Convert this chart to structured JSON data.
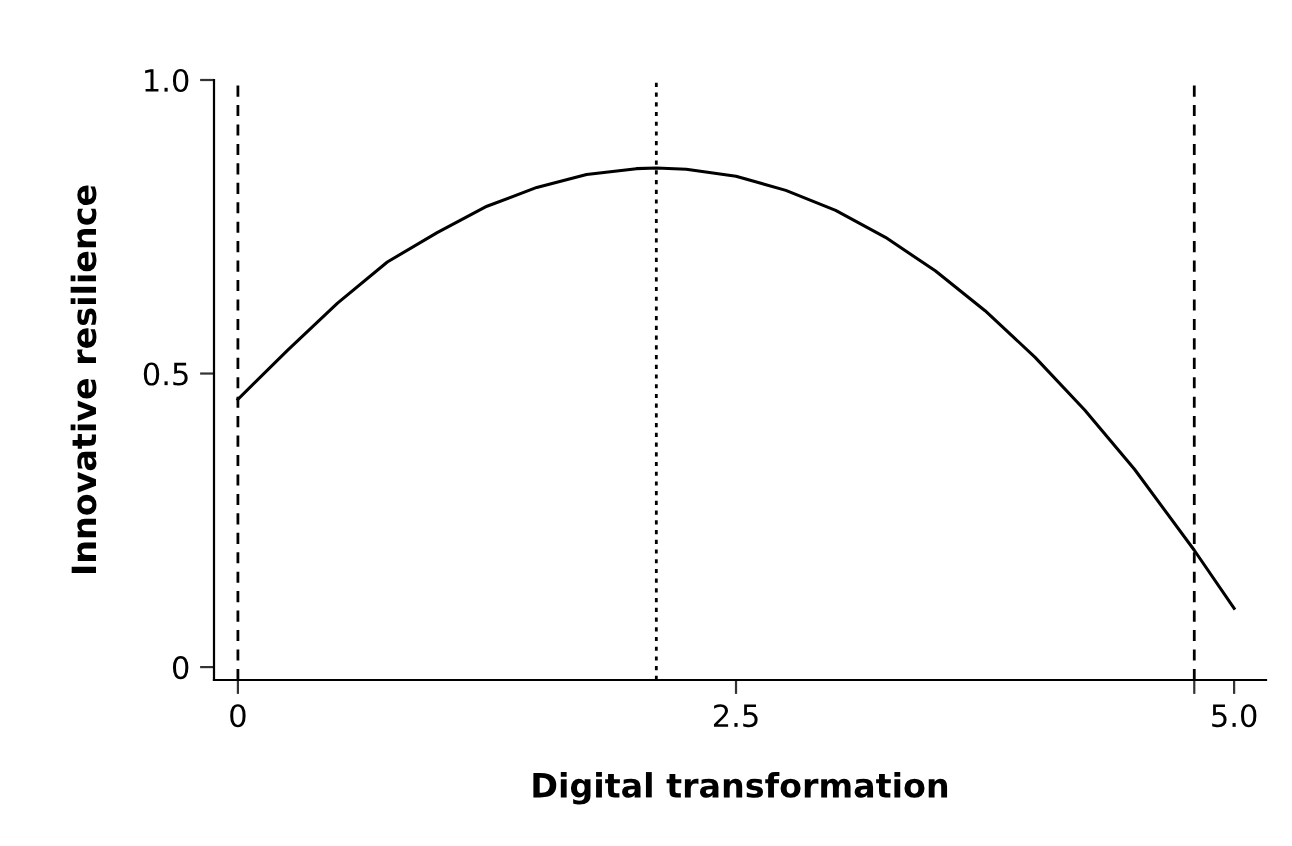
{
  "chart_data": {
    "type": "line",
    "xlabel": "Digital transformation",
    "ylabel": "Innovative resilience",
    "x": [
      0,
      0.25,
      0.5,
      0.75,
      1.0,
      1.25,
      1.5,
      1.75,
      2.0,
      2.1,
      2.25,
      2.5,
      2.75,
      3.0,
      3.25,
      3.5,
      3.75,
      4.0,
      4.25,
      4.5,
      4.8,
      5.0
    ],
    "series": [
      {
        "color": "#000000",
        "values": [
          0.456,
          0.54,
          0.62,
          0.69,
          0.74,
          0.785,
          0.817,
          0.839,
          0.849,
          0.85,
          0.848,
          0.836,
          0.812,
          0.778,
          0.732,
          0.675,
          0.607,
          0.528,
          0.438,
          0.337,
          0.199,
          0.1
        ]
      }
    ],
    "xlim": [
      -0.12,
      5.16
    ],
    "ylim": [
      -0.022,
      1.0
    ],
    "xticks": [
      0,
      2.5,
      {
        "value": 4.8,
        "label": null
      },
      {
        "value": 5.0,
        "label": "5.0"
      }
    ],
    "yticks": [
      0,
      0.5,
      {
        "value": 1.0,
        "label": "1.0"
      }
    ],
    "marker": "none",
    "line_style": "solid",
    "grid": false,
    "legend": false,
    "ref_lines": [
      {
        "axis": "x",
        "value": 0,
        "line_style": "dashed",
        "color": "#000000"
      },
      {
        "axis": "x",
        "value": 2.1,
        "line_style": "dotted",
        "color": "#000000"
      },
      {
        "axis": "x",
        "value": 4.8,
        "line_style": "dashed",
        "color": "#000000"
      }
    ]
  }
}
